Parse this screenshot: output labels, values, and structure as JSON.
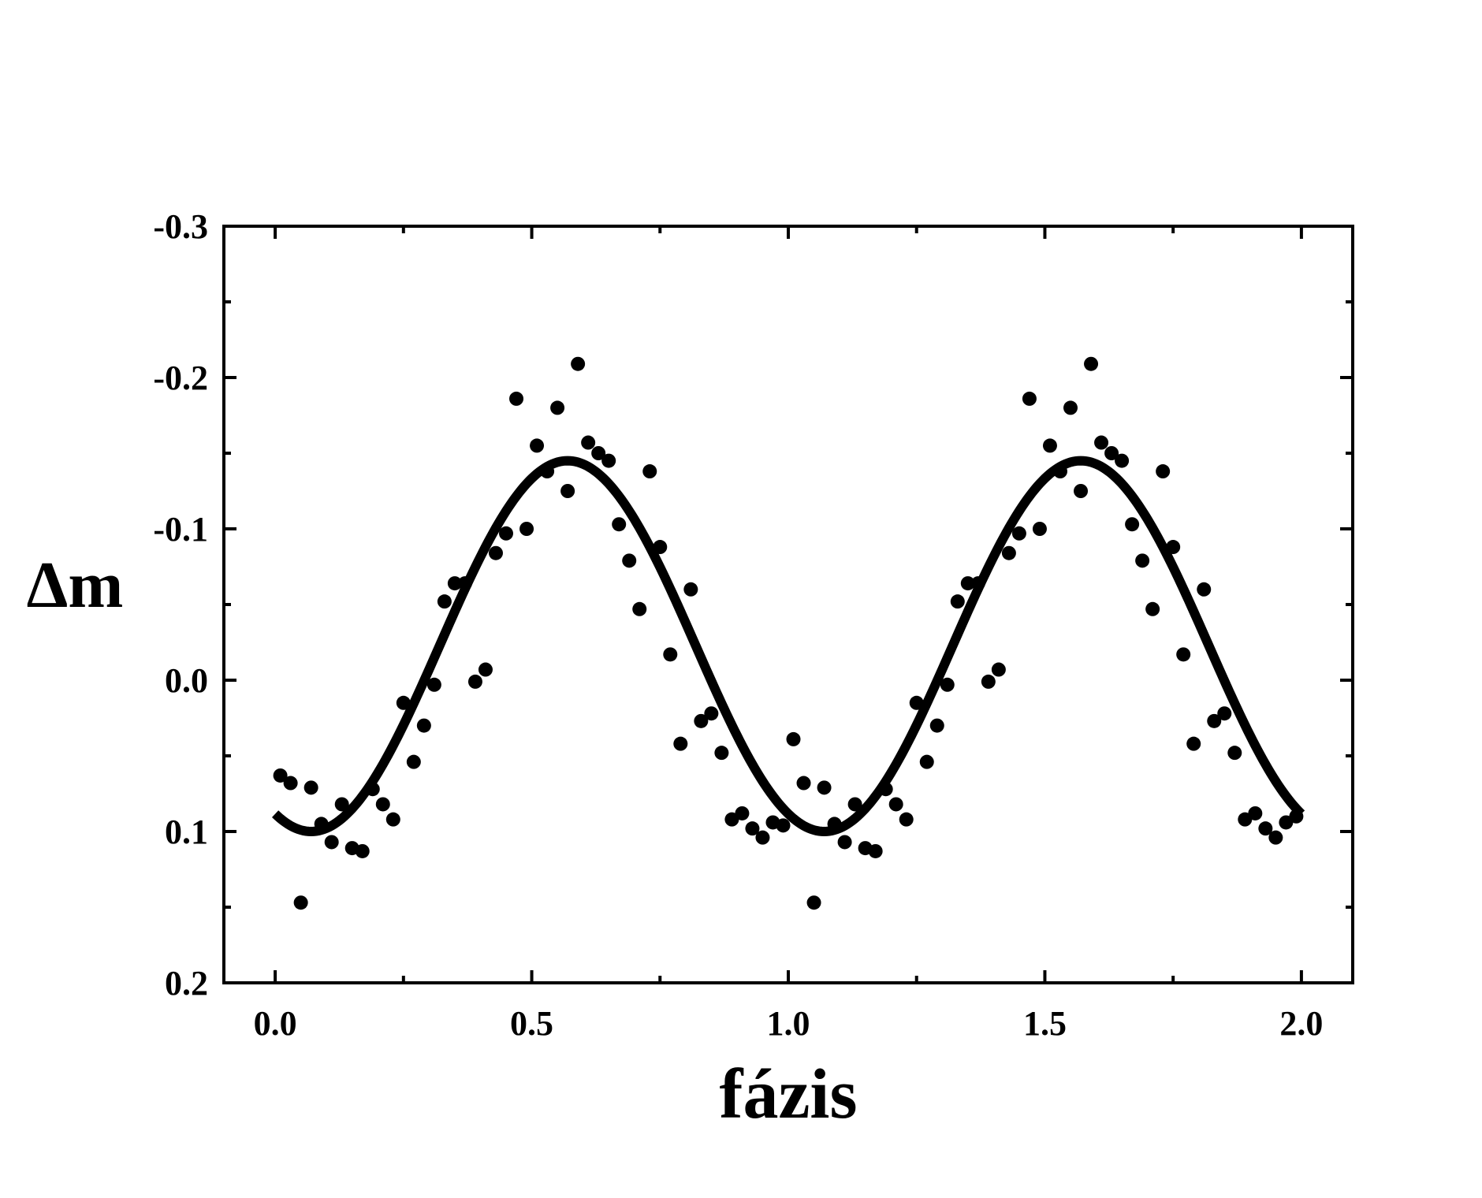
{
  "chart_data": {
    "type": "scatter",
    "xlabel": "fázis",
    "ylabel": "Δm",
    "xlim": [
      -0.1,
      2.1
    ],
    "ylim": [
      0.2,
      -0.3
    ],
    "y_inverted": true,
    "grid": false,
    "legend": "none",
    "x_ticks": [
      {
        "value": 0.0,
        "label": "0.0"
      },
      {
        "value": 0.5,
        "label": "0.5"
      },
      {
        "value": 1.0,
        "label": "1.0"
      },
      {
        "value": 1.5,
        "label": "1.5"
      },
      {
        "value": 2.0,
        "label": "2.0"
      }
    ],
    "y_ticks": [
      {
        "value": -0.3,
        "label": "-0.3"
      },
      {
        "value": -0.2,
        "label": "-0.2"
      },
      {
        "value": -0.1,
        "label": "-0.1"
      },
      {
        "value": 0.0,
        "label": "0.0"
      },
      {
        "value": 0.1,
        "label": "0.1"
      },
      {
        "value": 0.2,
        "label": "0.2"
      }
    ],
    "series": [
      {
        "type": "scatter",
        "color": "#000000",
        "points": [
          [
            0.01,
            0.063
          ],
          [
            0.03,
            0.068
          ],
          [
            0.05,
            0.147
          ],
          [
            0.07,
            0.071
          ],
          [
            0.09,
            0.095
          ],
          [
            0.11,
            0.107
          ],
          [
            0.13,
            0.082
          ],
          [
            0.15,
            0.111
          ],
          [
            0.17,
            0.113
          ],
          [
            0.19,
            0.072
          ],
          [
            0.21,
            0.082
          ],
          [
            0.23,
            0.092
          ],
          [
            0.25,
            0.015
          ],
          [
            0.27,
            0.054
          ],
          [
            0.29,
            0.03
          ],
          [
            0.31,
            0.003
          ],
          [
            0.33,
            -0.052
          ],
          [
            0.35,
            -0.064
          ],
          [
            0.37,
            -0.064
          ],
          [
            0.39,
            0.001
          ],
          [
            0.41,
            -0.007
          ],
          [
            0.43,
            -0.084
          ],
          [
            0.45,
            -0.097
          ],
          [
            0.47,
            -0.186
          ],
          [
            0.49,
            -0.1
          ],
          [
            0.51,
            -0.155
          ],
          [
            0.53,
            -0.138
          ],
          [
            0.55,
            -0.18
          ],
          [
            0.57,
            -0.125
          ],
          [
            0.59,
            -0.209
          ],
          [
            0.61,
            -0.157
          ],
          [
            0.63,
            -0.15
          ],
          [
            0.65,
            -0.145
          ],
          [
            0.67,
            -0.103
          ],
          [
            0.69,
            -0.079
          ],
          [
            0.71,
            -0.047
          ],
          [
            0.73,
            -0.138
          ],
          [
            0.75,
            -0.088
          ],
          [
            0.77,
            -0.017
          ],
          [
            0.79,
            0.042
          ],
          [
            0.81,
            -0.06
          ],
          [
            0.83,
            0.027
          ],
          [
            0.85,
            0.022
          ],
          [
            0.87,
            0.048
          ],
          [
            0.89,
            0.092
          ],
          [
            0.91,
            0.088
          ],
          [
            0.93,
            0.098
          ],
          [
            0.95,
            0.104
          ],
          [
            0.97,
            0.094
          ],
          [
            0.99,
            0.096
          ],
          [
            1.01,
            0.039
          ],
          [
            1.03,
            0.068
          ],
          [
            1.05,
            0.147
          ],
          [
            1.07,
            0.071
          ],
          [
            1.09,
            0.095
          ],
          [
            1.11,
            0.107
          ],
          [
            1.13,
            0.082
          ],
          [
            1.15,
            0.111
          ],
          [
            1.17,
            0.113
          ],
          [
            1.19,
            0.072
          ],
          [
            1.21,
            0.082
          ],
          [
            1.23,
            0.092
          ],
          [
            1.25,
            0.015
          ],
          [
            1.27,
            0.054
          ],
          [
            1.29,
            0.03
          ],
          [
            1.31,
            0.003
          ],
          [
            1.33,
            -0.052
          ],
          [
            1.35,
            -0.064
          ],
          [
            1.37,
            -0.064
          ],
          [
            1.39,
            0.001
          ],
          [
            1.41,
            -0.007
          ],
          [
            1.43,
            -0.084
          ],
          [
            1.45,
            -0.097
          ],
          [
            1.47,
            -0.186
          ],
          [
            1.49,
            -0.1
          ],
          [
            1.51,
            -0.155
          ],
          [
            1.53,
            -0.138
          ],
          [
            1.55,
            -0.18
          ],
          [
            1.57,
            -0.125
          ],
          [
            1.59,
            -0.209
          ],
          [
            1.61,
            -0.157
          ],
          [
            1.63,
            -0.15
          ],
          [
            1.65,
            -0.145
          ],
          [
            1.67,
            -0.103
          ],
          [
            1.69,
            -0.079
          ],
          [
            1.71,
            -0.047
          ],
          [
            1.73,
            -0.138
          ],
          [
            1.75,
            -0.088
          ],
          [
            1.77,
            -0.017
          ],
          [
            1.79,
            0.042
          ],
          [
            1.81,
            -0.06
          ],
          [
            1.83,
            0.027
          ],
          [
            1.85,
            0.022
          ],
          [
            1.87,
            0.048
          ],
          [
            1.89,
            0.092
          ],
          [
            1.91,
            0.088
          ],
          [
            1.93,
            0.098
          ],
          [
            1.95,
            0.104
          ],
          [
            1.97,
            0.094
          ],
          [
            1.99,
            0.09
          ]
        ]
      },
      {
        "type": "line",
        "color": "#000000",
        "model": "sine",
        "mean": -0.0225,
        "amplitude": 0.1225,
        "period": 1.0,
        "phase_of_maximum": 0.57,
        "x_range": [
          0.0,
          2.0
        ]
      }
    ]
  }
}
